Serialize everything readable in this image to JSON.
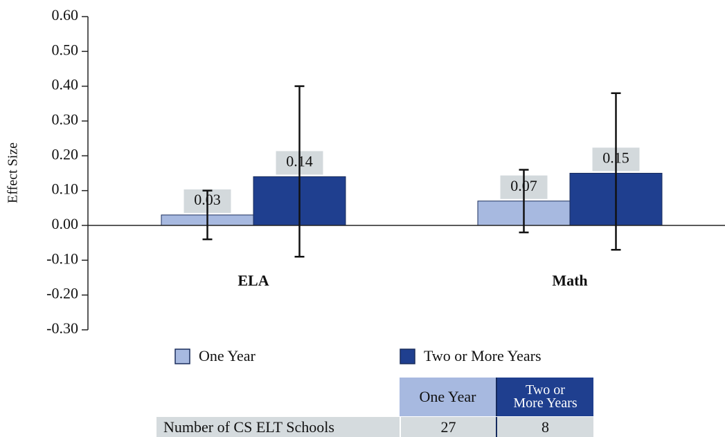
{
  "chart_data": {
    "type": "bar",
    "y_label": "Effect Size",
    "categories": [
      "ELA",
      "Math"
    ],
    "series": [
      {
        "name": "One Year",
        "color": "#a7b9e0",
        "values": [
          0.03,
          0.07
        ],
        "ci_low": [
          -0.04,
          -0.02
        ],
        "ci_high": [
          0.1,
          0.16
        ]
      },
      {
        "name": "Two or More Years",
        "color": "#1f3f8f",
        "values": [
          0.14,
          0.15
        ],
        "ci_low": [
          -0.09,
          -0.07
        ],
        "ci_high": [
          0.4,
          0.38
        ]
      }
    ],
    "ylim": [
      -0.3,
      0.6
    ],
    "yticks": [
      {
        "value": 0.6,
        "label": "0.60"
      },
      {
        "value": 0.5,
        "label": "0.50"
      },
      {
        "value": 0.4,
        "label": "0.40"
      },
      {
        "value": 0.3,
        "label": "0.30"
      },
      {
        "value": 0.2,
        "label": "0.20"
      },
      {
        "value": 0.1,
        "label": "0.10"
      },
      {
        "value": 0,
        "label": "0.00"
      },
      {
        "value": -0.1,
        "label": "-0.10"
      },
      {
        "value": -0.2,
        "label": "-0.20"
      },
      {
        "value": -0.3,
        "label": "-0.30"
      }
    ]
  },
  "table": {
    "columns": [
      "One Year",
      "Two or More Years"
    ],
    "rows": [
      [
        "Number of CS ELT Schools",
        "27",
        "8"
      ]
    ]
  }
}
